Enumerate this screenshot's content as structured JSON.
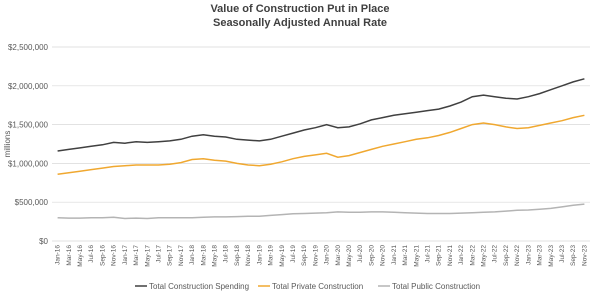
{
  "chart_data": {
    "type": "line",
    "title": "Value of Construction Put in Place",
    "subtitle": "Seasonally Adjusted Annual Rate",
    "y_label": "millions",
    "categories": [
      "Jan-16",
      "Mar-16",
      "May-16",
      "Jul-16",
      "Sep-16",
      "Nov-16",
      "Jan-17",
      "Mar-17",
      "May-17",
      "Jul-17",
      "Sep-17",
      "Nov-17",
      "Jan-18",
      "Mar-18",
      "May-18",
      "Jul-18",
      "Sep-18",
      "Nov-18",
      "Jan-19",
      "Mar-19",
      "May-19",
      "Jul-19",
      "Sep-19",
      "Nov-19",
      "Jan-20",
      "Mar-20",
      "May-20",
      "Jul-20",
      "Sep-20",
      "Nov-20",
      "Jan-21",
      "Mar-21",
      "May-21",
      "Jul-21",
      "Sep-21",
      "Nov-21",
      "Jan-22",
      "Mar-22",
      "May-22",
      "Jul-22",
      "Sep-22",
      "Nov-22",
      "Jan-23",
      "Mar-23",
      "May-23",
      "Jul-23",
      "Sep-23",
      "Nov-23"
    ],
    "series": [
      {
        "name": "Total Construction Spending",
        "color": "#404040",
        "values": [
          1160000,
          1180000,
          1200000,
          1220000,
          1240000,
          1270000,
          1260000,
          1280000,
          1270000,
          1280000,
          1290000,
          1310000,
          1350000,
          1370000,
          1350000,
          1340000,
          1310000,
          1300000,
          1290000,
          1310000,
          1350000,
          1390000,
          1430000,
          1460000,
          1500000,
          1460000,
          1470000,
          1510000,
          1560000,
          1590000,
          1620000,
          1640000,
          1660000,
          1680000,
          1700000,
          1740000,
          1790000,
          1860000,
          1880000,
          1860000,
          1840000,
          1830000,
          1860000,
          1900000,
          1950000,
          2000000,
          2050000,
          2090000
        ]
      },
      {
        "name": "Total Private Construction",
        "color": "#f0a830",
        "values": [
          860000,
          880000,
          900000,
          920000,
          940000,
          960000,
          970000,
          980000,
          980000,
          980000,
          990000,
          1010000,
          1050000,
          1060000,
          1040000,
          1030000,
          1000000,
          980000,
          970000,
          990000,
          1020000,
          1060000,
          1090000,
          1110000,
          1130000,
          1080000,
          1100000,
          1140000,
          1180000,
          1220000,
          1250000,
          1280000,
          1310000,
          1330000,
          1360000,
          1400000,
          1450000,
          1500000,
          1520000,
          1500000,
          1470000,
          1450000,
          1460000,
          1490000,
          1520000,
          1550000,
          1590000,
          1620000
        ]
      },
      {
        "name": "Total Public Construction",
        "color": "#b4b4b4",
        "values": [
          300000,
          295000,
          295000,
          300000,
          300000,
          305000,
          290000,
          295000,
          290000,
          300000,
          300000,
          300000,
          300000,
          305000,
          310000,
          310000,
          315000,
          320000,
          320000,
          330000,
          340000,
          350000,
          355000,
          360000,
          365000,
          375000,
          370000,
          370000,
          375000,
          375000,
          370000,
          365000,
          360000,
          355000,
          355000,
          355000,
          360000,
          365000,
          370000,
          375000,
          385000,
          395000,
          400000,
          410000,
          420000,
          440000,
          460000,
          475000
        ]
      }
    ],
    "ylim": [
      0,
      2500000
    ],
    "yticks": [
      {
        "value": 0,
        "label": "$0"
      },
      {
        "value": 500000,
        "label": "$500,000"
      },
      {
        "value": 1000000,
        "label": "$1,000,000"
      },
      {
        "value": 1500000,
        "label": "$1,500,000"
      },
      {
        "value": 2000000,
        "label": "$2,000,000"
      },
      {
        "value": 2500000,
        "label": "$2,500,000"
      }
    ],
    "grid": true
  }
}
